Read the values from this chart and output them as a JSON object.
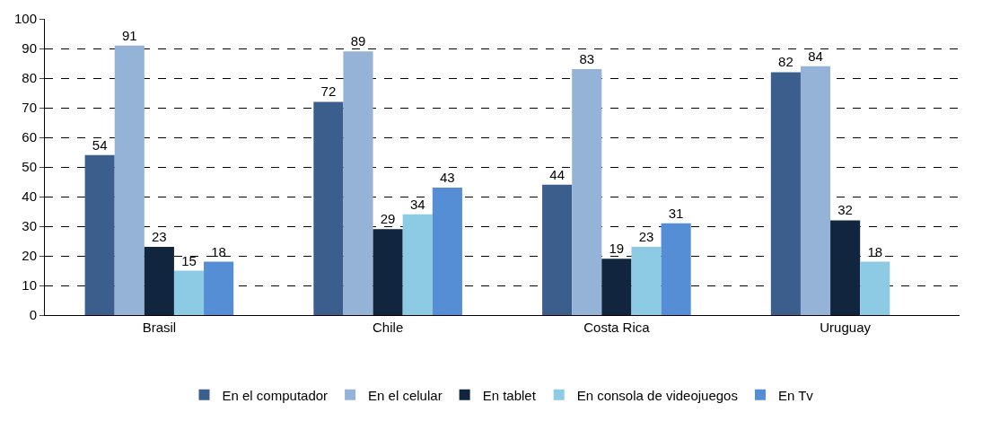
{
  "chart_data": {
    "type": "bar",
    "categories": [
      "Brasil",
      "Chile",
      "Costa Rica",
      "Uruguay"
    ],
    "series": [
      {
        "name": "En el computador",
        "color": "#3b5e8c",
        "values": [
          54,
          72,
          44,
          82
        ]
      },
      {
        "name": "En el celular",
        "color": "#95b3d7",
        "values": [
          91,
          89,
          83,
          84
        ]
      },
      {
        "name": "En tablet",
        "color": "#12253f",
        "values": [
          23,
          29,
          19,
          32
        ]
      },
      {
        "name": "En consola de videojuegos",
        "color": "#8ccbe3",
        "values": [
          15,
          34,
          23,
          18
        ]
      },
      {
        "name": "En Tv",
        "color": "#558ed5",
        "values": [
          18,
          43,
          31,
          null
        ]
      }
    ],
    "ylim": [
      0,
      100
    ],
    "yticks": [
      0,
      10,
      20,
      30,
      40,
      50,
      60,
      70,
      80,
      90,
      100
    ],
    "grid": "y",
    "legend": "bottom",
    "data_labels": true
  }
}
